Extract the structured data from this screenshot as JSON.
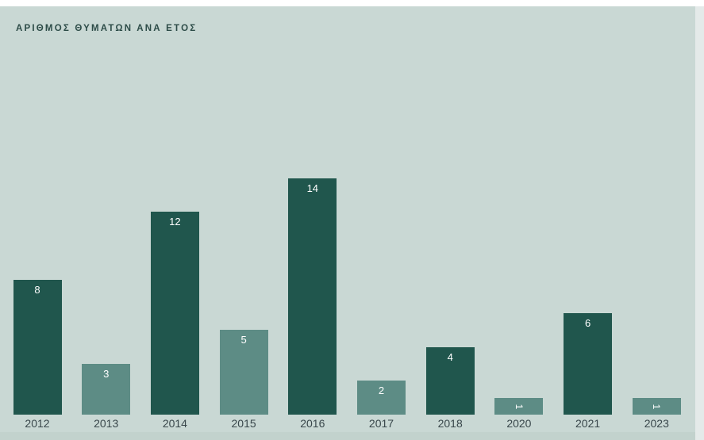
{
  "page": {
    "title": "ΑΡΙΘΜΟΣ ΘΥΜΑΤΩΝ ΑΝΑ ΕΤΟΣ"
  },
  "colors": {
    "background": "#c9d8d4",
    "top_strip": "#ffffff",
    "footer_strip": "#c2d2cd",
    "scrollbar_track": "#e4eae9",
    "bar_dark": "#20564d",
    "bar_light": "#5d8c85",
    "title_text": "#2d4c48",
    "axis_text": "#39474b",
    "value_text": "#ffffff"
  },
  "chart_data": {
    "type": "bar",
    "title": "ΑΡΙΘΜΟΣ ΘΥΜΑΤΩΝ ΑΝΑ ΕΤΟΣ",
    "categories": [
      "2012",
      "2013",
      "2014",
      "2015",
      "2016",
      "2017",
      "2018",
      "2020",
      "2021",
      "2023"
    ],
    "values": [
      8,
      3,
      12,
      5,
      14,
      2,
      4,
      1,
      6,
      1
    ],
    "bar_colors": [
      "dark",
      "light",
      "dark",
      "light",
      "dark",
      "light",
      "dark",
      "light",
      "dark",
      "light"
    ],
    "value_label_rotated": [
      false,
      false,
      false,
      false,
      false,
      false,
      false,
      true,
      false,
      true
    ],
    "value_label_position": "inside-top",
    "xlabel": "",
    "ylabel": "",
    "ylim": [
      0,
      14
    ],
    "grid": false,
    "legend": false,
    "axis_lines": false
  }
}
